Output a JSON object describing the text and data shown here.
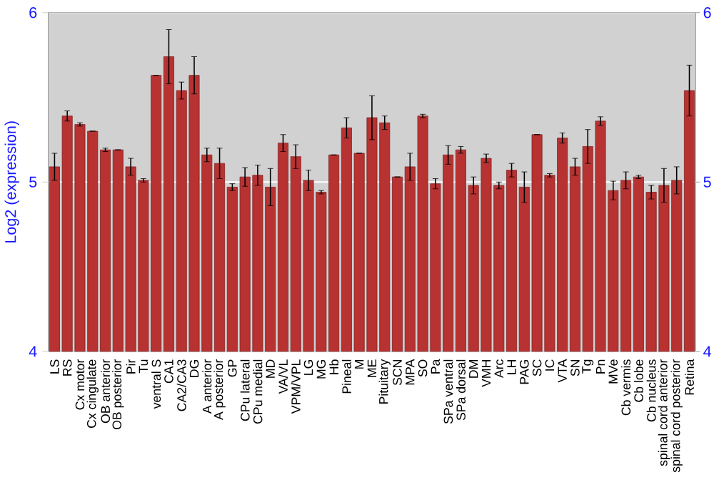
{
  "chart_data": {
    "type": "bar",
    "ylabel": "Log2 (expression)",
    "categories": [
      "LS",
      "RS",
      "Cx motor",
      "Cx cingulate",
      "OB anterior",
      "OB posterior",
      "Pir",
      "Tu",
      "ventral S",
      "CA1",
      "CA2/CA3",
      "DG",
      "A anterior",
      "A posterior",
      "GP",
      "CPu lateral",
      "CPu medial",
      "MD",
      "VA/VL",
      "VPM/VPL",
      "LG",
      "MG",
      "Hb",
      "Pineal",
      "M",
      "ME",
      "Pituitary",
      "SCN",
      "MPA",
      "SO",
      "Pa",
      "SPa ventral",
      "SPa dorsal",
      "DM",
      "VMH",
      "Arc",
      "LH",
      "PAG",
      "SC",
      "IC",
      "VTA",
      "SN",
      "Tg",
      "Pn",
      "MVe",
      "Cb vermis",
      "Cb lobe",
      "Cb nucleus",
      "spinal cord anterior",
      "spinal cord posterior",
      "Retina"
    ],
    "values": [
      5.09,
      5.39,
      5.34,
      5.3,
      5.19,
      5.19,
      5.09,
      5.01,
      5.63,
      5.74,
      5.54,
      5.63,
      5.16,
      5.11,
      4.97,
      5.03,
      5.04,
      4.97,
      5.23,
      5.15,
      5.01,
      4.94,
      5.16,
      5.32,
      5.17,
      5.38,
      5.35,
      5.03,
      5.09,
      5.39,
      4.99,
      5.16,
      5.19,
      4.98,
      5.14,
      4.98,
      5.07,
      4.97,
      5.28,
      5.04,
      5.26,
      5.09,
      5.21,
      5.36,
      4.95,
      5.01,
      5.03,
      4.94,
      4.98,
      5.01,
      5.54
    ],
    "errors": [
      0.08,
      0.03,
      0.01,
      null,
      0.01,
      null,
      0.05,
      0.01,
      null,
      0.16,
      0.05,
      0.11,
      0.04,
      0.09,
      0.02,
      0.055,
      0.06,
      0.11,
      0.05,
      0.07,
      0.06,
      0.01,
      null,
      0.06,
      null,
      0.13,
      0.04,
      null,
      0.08,
      0.01,
      0.03,
      0.055,
      0.02,
      0.05,
      0.025,
      0.02,
      0.04,
      0.09,
      null,
      0.01,
      0.03,
      0.05,
      0.1,
      0.025,
      0.055,
      0.05,
      0.01,
      0.04,
      0.1,
      0.08,
      0.15
    ],
    "color": "#b83232",
    "ylim": [
      4,
      6
    ],
    "yticks": [
      4,
      5,
      6
    ],
    "y2lim": [
      4,
      6
    ],
    "y2ticks": [
      4,
      5,
      6
    ],
    "grid": "y"
  }
}
